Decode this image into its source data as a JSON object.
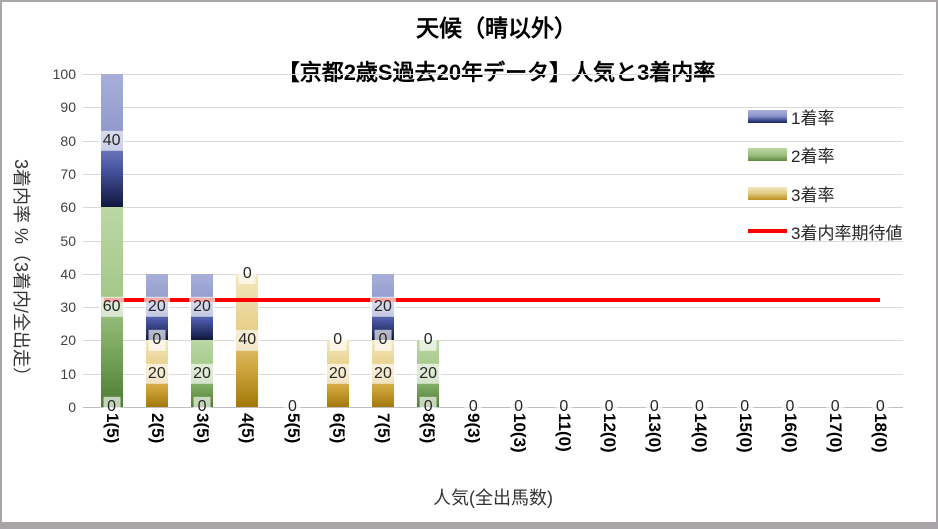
{
  "title": {
    "line1": "天候（晴以外）",
    "line2": "【京都2歳S過去20年データ】人気と3着内率"
  },
  "chart_data": {
    "type": "bar",
    "stacked": true,
    "title": "天候（晴以外）【京都2歳S過去20年データ】人気と3着内率",
    "xlabel": "人気(全出馬数)",
    "ylabel": "3着内率 %（3着内/全出走）",
    "ylim": [
      0,
      100
    ],
    "ytick_step": 10,
    "grid": true,
    "categories": [
      "1(5)",
      "2(5)",
      "3(5)",
      "4(5)",
      "5(5)",
      "6(5)",
      "7(5)",
      "8(5)",
      "9(3)",
      "10(3)",
      "11(0)",
      "12(0)",
      "13(0)",
      "14(0)",
      "15(0)",
      "16(0)",
      "17(0)",
      "18(0)"
    ],
    "series": [
      {
        "name": "3着率",
        "key": "third",
        "color": "#cfa43c",
        "values": [
          0,
          20,
          0,
          40,
          0,
          20,
          20,
          0,
          0,
          0,
          0,
          0,
          0,
          0,
          0,
          0,
          0,
          0
        ]
      },
      {
        "name": "2着率",
        "key": "second",
        "color": "#74a258",
        "values": [
          60,
          0,
          20,
          0,
          0,
          0,
          0,
          20,
          0,
          0,
          0,
          0,
          0,
          0,
          0,
          0,
          0,
          0
        ]
      },
      {
        "name": "1着率",
        "key": "win",
        "color": "#4a57a5",
        "values": [
          40,
          20,
          20,
          0,
          0,
          0,
          20,
          0,
          0,
          0,
          0,
          0,
          0,
          0,
          0,
          0,
          0,
          0
        ]
      }
    ],
    "line_series": {
      "name": "3着内率期待値",
      "color": "#ff0000",
      "value": 32
    },
    "legend_position": "right-overlay",
    "legend": {
      "items": [
        {
          "label": "1着率",
          "swatch": "win"
        },
        {
          "label": "2着率",
          "swatch": "second"
        },
        {
          "label": "3着率",
          "swatch": "third"
        },
        {
          "label": "3着内率期待値",
          "swatch": "line"
        }
      ]
    }
  }
}
